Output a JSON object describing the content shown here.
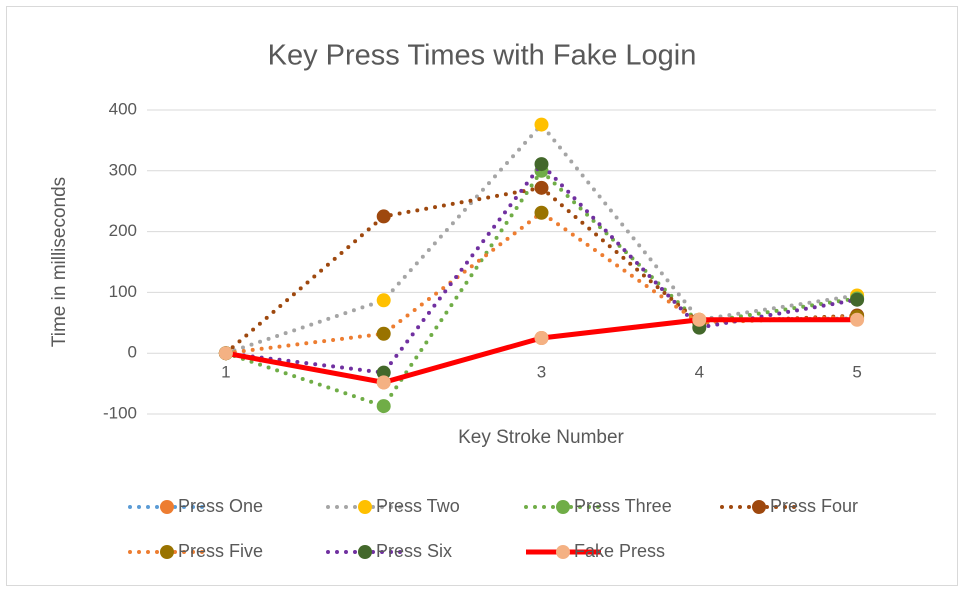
{
  "chart_data": {
    "type": "line",
    "title": "Key Press Times with Fake Login",
    "x_label": "Key Stroke Number",
    "y_label": "Time in milliseconds",
    "categories": [
      "1",
      "2",
      "3",
      "4",
      "5"
    ],
    "ylim": [
      -100,
      400
    ],
    "yticks": [
      -100,
      0,
      100,
      200,
      300,
      400
    ],
    "grid": true,
    "legend": "bottom",
    "series": [
      {
        "name": "Press One",
        "color": "#5b9bd5",
        "marker_color": "#ed7d31",
        "line_style": "dotted",
        "values": [
          0,
          -48,
          25,
          55,
          57
        ]
      },
      {
        "name": "Press Two",
        "color": "#a5a5a5",
        "marker_color": "#ffc000",
        "line_style": "dotted",
        "values": [
          0,
          87,
          376,
          55,
          95
        ]
      },
      {
        "name": "Press Three",
        "color": "#70ad47",
        "marker_color": "#70ad47",
        "line_style": "dotted",
        "values": [
          0,
          -87,
          300,
          50,
          90
        ]
      },
      {
        "name": "Press Four",
        "color": "#9e480e",
        "marker_color": "#9e480e",
        "line_style": "dotted",
        "values": [
          0,
          225,
          272,
          50,
          62
        ]
      },
      {
        "name": "Press Five",
        "color": "#ed7d31",
        "marker_color": "#997300",
        "line_style": "dotted",
        "values": [
          0,
          32,
          231,
          50,
          60
        ]
      },
      {
        "name": "Press Six",
        "color": "#7030a0",
        "marker_color": "#43682b",
        "line_style": "dotted",
        "values": [
          0,
          -32,
          311,
          42,
          88
        ]
      },
      {
        "name": "Fake Press",
        "color": "#ff0000",
        "marker_color": "#f4b183",
        "line_style": "solid",
        "values": [
          0,
          -48,
          25,
          55,
          55
        ]
      }
    ]
  }
}
